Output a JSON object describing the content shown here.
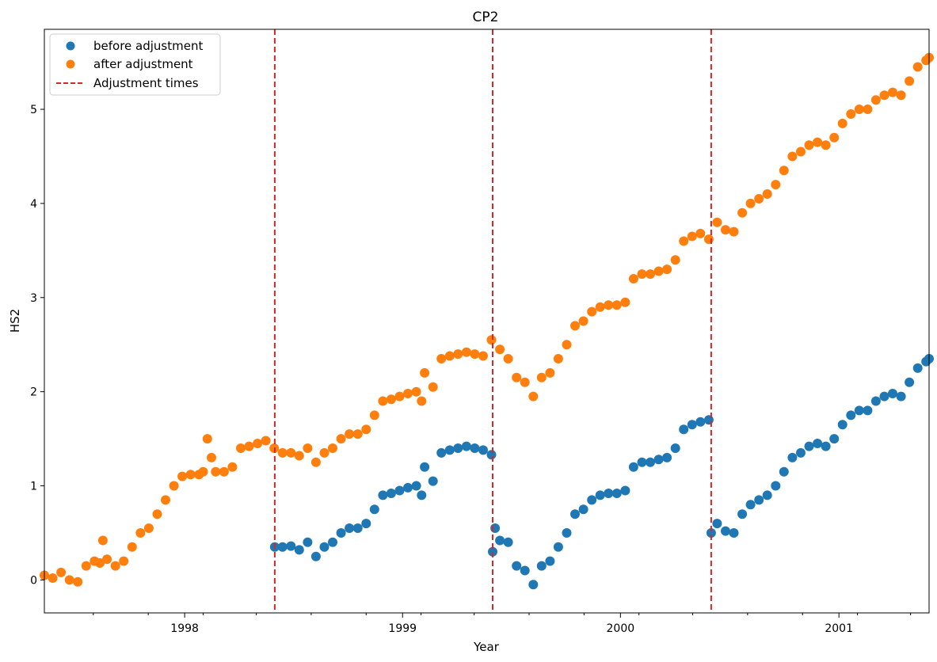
{
  "chart_data": {
    "type": "scatter",
    "title": "CP2",
    "xlabel": "Year",
    "ylabel": "HS2",
    "xlim": [
      "1997-05-11",
      "2001-06-01"
    ],
    "ylim": [
      -0.35,
      5.85
    ],
    "x_ticks": [
      "1998",
      "1999",
      "2000",
      "2001"
    ],
    "y_ticks": [
      0,
      1,
      2,
      3,
      4,
      5
    ],
    "legend_position": "upper-left",
    "colors": {
      "before": "#1f77b4",
      "after": "#ff7f0e",
      "adjust": "#d62728"
    },
    "legend": [
      "before adjustment",
      "after adjustment",
      "Adjustment times"
    ],
    "adjustment_times": [
      "1998-06-01",
      "1999-06-01",
      "2000-06-01"
    ],
    "series": [
      {
        "name": "after adjustment",
        "points": [
          [
            "1997-05-11",
            0.05
          ],
          [
            "1997-05-25",
            0.02
          ],
          [
            "1997-06-08",
            0.08
          ],
          [
            "1997-06-22",
            0.0
          ],
          [
            "1997-07-06",
            -0.02
          ],
          [
            "1997-07-20",
            0.15
          ],
          [
            "1997-08-03",
            0.2
          ],
          [
            "1997-08-12",
            0.18
          ],
          [
            "1997-08-17",
            0.42
          ],
          [
            "1997-08-24",
            0.22
          ],
          [
            "1997-09-07",
            0.15
          ],
          [
            "1997-09-21",
            0.2
          ],
          [
            "1997-10-05",
            0.35
          ],
          [
            "1997-10-19",
            0.5
          ],
          [
            "1997-11-02",
            0.55
          ],
          [
            "1997-11-16",
            0.7
          ],
          [
            "1997-11-30",
            0.85
          ],
          [
            "1997-12-14",
            1.0
          ],
          [
            "1997-12-28",
            1.1
          ],
          [
            "1998-01-11",
            1.12
          ],
          [
            "1998-01-25",
            1.12
          ],
          [
            "1998-02-01",
            1.15
          ],
          [
            "1998-02-08",
            1.5
          ],
          [
            "1998-02-15",
            1.3
          ],
          [
            "1998-02-22",
            1.15
          ],
          [
            "1998-03-08",
            1.15
          ],
          [
            "1998-03-22",
            1.2
          ],
          [
            "1998-04-05",
            1.4
          ],
          [
            "1998-04-19",
            1.42
          ],
          [
            "1998-05-03",
            1.45
          ],
          [
            "1998-05-17",
            1.48
          ],
          [
            "1998-05-31",
            1.4
          ],
          [
            "1998-06-14",
            1.35
          ],
          [
            "1998-06-28",
            1.35
          ],
          [
            "1998-07-12",
            1.32
          ],
          [
            "1998-07-26",
            1.4
          ],
          [
            "1998-08-09",
            1.25
          ],
          [
            "1998-08-23",
            1.35
          ],
          [
            "1998-09-06",
            1.4
          ],
          [
            "1998-09-20",
            1.5
          ],
          [
            "1998-10-04",
            1.55
          ],
          [
            "1998-10-18",
            1.55
          ],
          [
            "1998-11-01",
            1.6
          ],
          [
            "1998-11-15",
            1.75
          ],
          [
            "1998-11-29",
            1.9
          ],
          [
            "1998-12-13",
            1.92
          ],
          [
            "1998-12-27",
            1.95
          ],
          [
            "1999-01-10",
            1.98
          ],
          [
            "1999-01-24",
            2.0
          ],
          [
            "1999-02-02",
            1.9
          ],
          [
            "1999-02-07",
            2.2
          ],
          [
            "1999-02-21",
            2.05
          ],
          [
            "1999-03-07",
            2.35
          ],
          [
            "1999-03-21",
            2.38
          ],
          [
            "1999-04-04",
            2.4
          ],
          [
            "1999-04-18",
            2.42
          ],
          [
            "1999-05-02",
            2.4
          ],
          [
            "1999-05-16",
            2.38
          ],
          [
            "1999-05-30",
            2.55
          ],
          [
            "1999-06-13",
            2.45
          ],
          [
            "1999-06-27",
            2.35
          ],
          [
            "1999-07-11",
            2.15
          ],
          [
            "1999-07-25",
            2.1
          ],
          [
            "1999-08-08",
            1.95
          ],
          [
            "1999-08-22",
            2.15
          ],
          [
            "1999-09-05",
            2.2
          ],
          [
            "1999-09-19",
            2.35
          ],
          [
            "1999-10-03",
            2.5
          ],
          [
            "1999-10-17",
            2.7
          ],
          [
            "1999-10-31",
            2.75
          ],
          [
            "1999-11-14",
            2.85
          ],
          [
            "1999-11-28",
            2.9
          ],
          [
            "1999-12-12",
            2.92
          ],
          [
            "1999-12-26",
            2.92
          ],
          [
            "2000-01-09",
            2.95
          ],
          [
            "2000-01-23",
            3.2
          ],
          [
            "2000-02-06",
            3.25
          ],
          [
            "2000-02-20",
            3.25
          ],
          [
            "2000-03-05",
            3.28
          ],
          [
            "2000-03-19",
            3.3
          ],
          [
            "2000-04-02",
            3.4
          ],
          [
            "2000-04-16",
            3.6
          ],
          [
            "2000-04-30",
            3.65
          ],
          [
            "2000-05-14",
            3.68
          ],
          [
            "2000-05-28",
            3.62
          ],
          [
            "2000-06-11",
            3.8
          ],
          [
            "2000-06-25",
            3.72
          ],
          [
            "2000-07-09",
            3.7
          ],
          [
            "2000-07-23",
            3.9
          ],
          [
            "2000-08-06",
            4.0
          ],
          [
            "2000-08-20",
            4.05
          ],
          [
            "2000-09-03",
            4.1
          ],
          [
            "2000-09-17",
            4.2
          ],
          [
            "2000-10-01",
            4.35
          ],
          [
            "2000-10-15",
            4.5
          ],
          [
            "2000-10-29",
            4.55
          ],
          [
            "2000-11-12",
            4.62
          ],
          [
            "2000-11-26",
            4.65
          ],
          [
            "2000-12-10",
            4.62
          ],
          [
            "2000-12-24",
            4.7
          ],
          [
            "2001-01-07",
            4.85
          ],
          [
            "2001-01-21",
            4.95
          ],
          [
            "2001-02-04",
            5.0
          ],
          [
            "2001-02-18",
            5.0
          ],
          [
            "2001-03-04",
            5.1
          ],
          [
            "2001-03-18",
            5.15
          ],
          [
            "2001-04-01",
            5.18
          ],
          [
            "2001-04-15",
            5.15
          ],
          [
            "2001-04-29",
            5.3
          ],
          [
            "2001-05-13",
            5.45
          ],
          [
            "2001-05-27",
            5.52
          ],
          [
            "2001-06-01",
            5.55
          ]
        ]
      },
      {
        "name": "before adjustment",
        "points": [
          [
            "1998-06-01",
            0.35
          ],
          [
            "1998-06-14",
            0.35
          ],
          [
            "1998-06-28",
            0.36
          ],
          [
            "1998-07-12",
            0.32
          ],
          [
            "1998-07-26",
            0.4
          ],
          [
            "1998-08-09",
            0.25
          ],
          [
            "1998-08-23",
            0.35
          ],
          [
            "1998-09-06",
            0.4
          ],
          [
            "1998-09-20",
            0.5
          ],
          [
            "1998-10-04",
            0.55
          ],
          [
            "1998-10-18",
            0.55
          ],
          [
            "1998-11-01",
            0.6
          ],
          [
            "1998-11-15",
            0.75
          ],
          [
            "1998-11-29",
            0.9
          ],
          [
            "1998-12-13",
            0.92
          ],
          [
            "1998-12-27",
            0.95
          ],
          [
            "1999-01-10",
            0.98
          ],
          [
            "1999-01-24",
            1.0
          ],
          [
            "1999-02-02",
            0.9
          ],
          [
            "1999-02-07",
            1.2
          ],
          [
            "1999-02-21",
            1.05
          ],
          [
            "1999-03-07",
            1.35
          ],
          [
            "1999-03-21",
            1.38
          ],
          [
            "1999-04-04",
            1.4
          ],
          [
            "1999-04-18",
            1.42
          ],
          [
            "1999-05-02",
            1.4
          ],
          [
            "1999-05-16",
            1.38
          ],
          [
            "1999-05-30",
            1.33
          ],
          [
            "1999-06-01",
            0.3
          ],
          [
            "1999-06-05",
            0.55
          ],
          [
            "1999-06-13",
            0.42
          ],
          [
            "1999-06-27",
            0.4
          ],
          [
            "1999-07-11",
            0.15
          ],
          [
            "1999-07-25",
            0.1
          ],
          [
            "1999-08-08",
            -0.05
          ],
          [
            "1999-08-22",
            0.15
          ],
          [
            "1999-09-05",
            0.2
          ],
          [
            "1999-09-19",
            0.35
          ],
          [
            "1999-10-03",
            0.5
          ],
          [
            "1999-10-17",
            0.7
          ],
          [
            "1999-10-31",
            0.75
          ],
          [
            "1999-11-14",
            0.85
          ],
          [
            "1999-11-28",
            0.9
          ],
          [
            "1999-12-12",
            0.92
          ],
          [
            "1999-12-26",
            0.92
          ],
          [
            "2000-01-09",
            0.95
          ],
          [
            "2000-01-23",
            1.2
          ],
          [
            "2000-02-06",
            1.25
          ],
          [
            "2000-02-20",
            1.25
          ],
          [
            "2000-03-05",
            1.28
          ],
          [
            "2000-03-19",
            1.3
          ],
          [
            "2000-04-02",
            1.4
          ],
          [
            "2000-04-16",
            1.6
          ],
          [
            "2000-04-30",
            1.65
          ],
          [
            "2000-05-14",
            1.68
          ],
          [
            "2000-05-28",
            1.7
          ],
          [
            "2000-06-01",
            0.5
          ],
          [
            "2000-06-11",
            0.6
          ],
          [
            "2000-06-25",
            0.52
          ],
          [
            "2000-07-09",
            0.5
          ],
          [
            "2000-07-23",
            0.7
          ],
          [
            "2000-08-06",
            0.8
          ],
          [
            "2000-08-20",
            0.85
          ],
          [
            "2000-09-03",
            0.9
          ],
          [
            "2000-09-17",
            1.0
          ],
          [
            "2000-10-01",
            1.15
          ],
          [
            "2000-10-15",
            1.3
          ],
          [
            "2000-10-29",
            1.35
          ],
          [
            "2000-11-12",
            1.42
          ],
          [
            "2000-11-26",
            1.45
          ],
          [
            "2000-12-10",
            1.42
          ],
          [
            "2000-12-24",
            1.5
          ],
          [
            "2001-01-07",
            1.65
          ],
          [
            "2001-01-21",
            1.75
          ],
          [
            "2001-02-04",
            1.8
          ],
          [
            "2001-02-18",
            1.8
          ],
          [
            "2001-03-04",
            1.9
          ],
          [
            "2001-03-18",
            1.95
          ],
          [
            "2001-04-01",
            1.98
          ],
          [
            "2001-04-15",
            1.95
          ],
          [
            "2001-04-29",
            2.1
          ],
          [
            "2001-05-13",
            2.25
          ],
          [
            "2001-05-27",
            2.32
          ],
          [
            "2001-06-01",
            2.35
          ]
        ]
      }
    ]
  }
}
